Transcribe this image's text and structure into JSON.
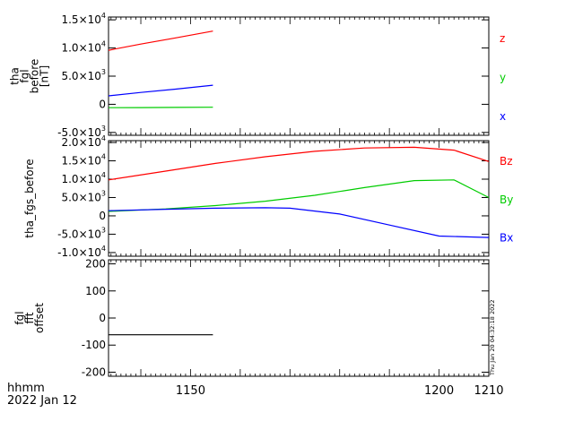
{
  "footer": {
    "time_format": "hhmm",
    "date": "2022 Jan 12"
  },
  "timestamp": "Thu Jan 20 04:32:18 2022",
  "x_axis": {
    "range": [
      1133.5,
      1210
    ],
    "ticks": [
      1150,
      1200,
      1210
    ],
    "tick_labels": [
      "1150",
      "1200",
      "1210"
    ]
  },
  "chart_data": [
    {
      "type": "line",
      "ylabel": [
        "tha",
        "fgl",
        "before",
        "[nT]"
      ],
      "ylim": [
        -5500,
        15500
      ],
      "yticks": [
        {
          "value": 15000,
          "mant": "1.5×10",
          "exp": "4"
        },
        {
          "value": 10000,
          "mant": "1.0×10",
          "exp": "4"
        },
        {
          "value": 5000,
          "mant": "5.0×10",
          "exp": "3"
        },
        {
          "value": 0,
          "mant": "0",
          "exp": ""
        },
        {
          "value": -5000,
          "mant": "-5.0×10",
          "exp": "3"
        }
      ],
      "series": [
        {
          "name": "z",
          "color": "#ff0000",
          "x": [
            1133.5,
            1140,
            1147,
            1154.5
          ],
          "y": [
            9600,
            10700,
            11800,
            13000
          ]
        },
        {
          "name": "y",
          "color": "#00cc00",
          "x": [
            1133.5,
            1140,
            1147,
            1154.5
          ],
          "y": [
            -600,
            -580,
            -550,
            -520
          ]
        },
        {
          "name": "x",
          "color": "#0000ff",
          "x": [
            1133.5,
            1140,
            1147,
            1154.5
          ],
          "y": [
            1500,
            2100,
            2700,
            3400
          ]
        }
      ]
    },
    {
      "type": "line",
      "ylabel": [
        "tha_fgs_before"
      ],
      "ylim": [
        -11000,
        20500
      ],
      "yticks": [
        {
          "value": 20000,
          "mant": "2.0×10",
          "exp": "4"
        },
        {
          "value": 15000,
          "mant": "1.5×10",
          "exp": "4"
        },
        {
          "value": 10000,
          "mant": "1.0×10",
          "exp": "4"
        },
        {
          "value": 5000,
          "mant": "5.0×10",
          "exp": "3"
        },
        {
          "value": 0,
          "mant": "0",
          "exp": ""
        },
        {
          "value": -5000,
          "mant": "-5.0×10",
          "exp": "3"
        },
        {
          "value": -10000,
          "mant": "-1.0×10",
          "exp": "4"
        }
      ],
      "series": [
        {
          "name": "Bz",
          "color": "#ff0000",
          "x": [
            1133.5,
            1145,
            1155,
            1165,
            1175,
            1185,
            1195,
            1203,
            1210
          ],
          "y": [
            9800,
            12200,
            14300,
            16100,
            17600,
            18500,
            18700,
            17900,
            14800
          ]
        },
        {
          "name": "By",
          "color": "#00cc00",
          "x": [
            1133.5,
            1145,
            1155,
            1165,
            1175,
            1185,
            1195,
            1203,
            1210
          ],
          "y": [
            1200,
            1900,
            2800,
            4000,
            5600,
            7700,
            9600,
            9800,
            5000
          ]
        },
        {
          "name": "Bx",
          "color": "#0000ff",
          "x": [
            1133.5,
            1145,
            1155,
            1165,
            1170,
            1180,
            1190,
            1200,
            1210
          ],
          "y": [
            1400,
            1800,
            2100,
            2200,
            2100,
            500,
            -2500,
            -5500,
            -5900
          ]
        }
      ]
    },
    {
      "type": "line",
      "ylabel": [
        "fgl",
        "fft",
        "offset"
      ],
      "ylim": [
        -215,
        215
      ],
      "yticks": [
        {
          "value": 200,
          "mant": "200",
          "exp": ""
        },
        {
          "value": 100,
          "mant": "100",
          "exp": ""
        },
        {
          "value": 0,
          "mant": "0",
          "exp": ""
        },
        {
          "value": -100,
          "mant": "-100",
          "exp": ""
        },
        {
          "value": -200,
          "mant": "-200",
          "exp": ""
        }
      ],
      "series": [
        {
          "color": "#000000",
          "x": [
            1133.5,
            1154.5
          ],
          "y": [
            -62,
            -62
          ]
        }
      ]
    }
  ]
}
